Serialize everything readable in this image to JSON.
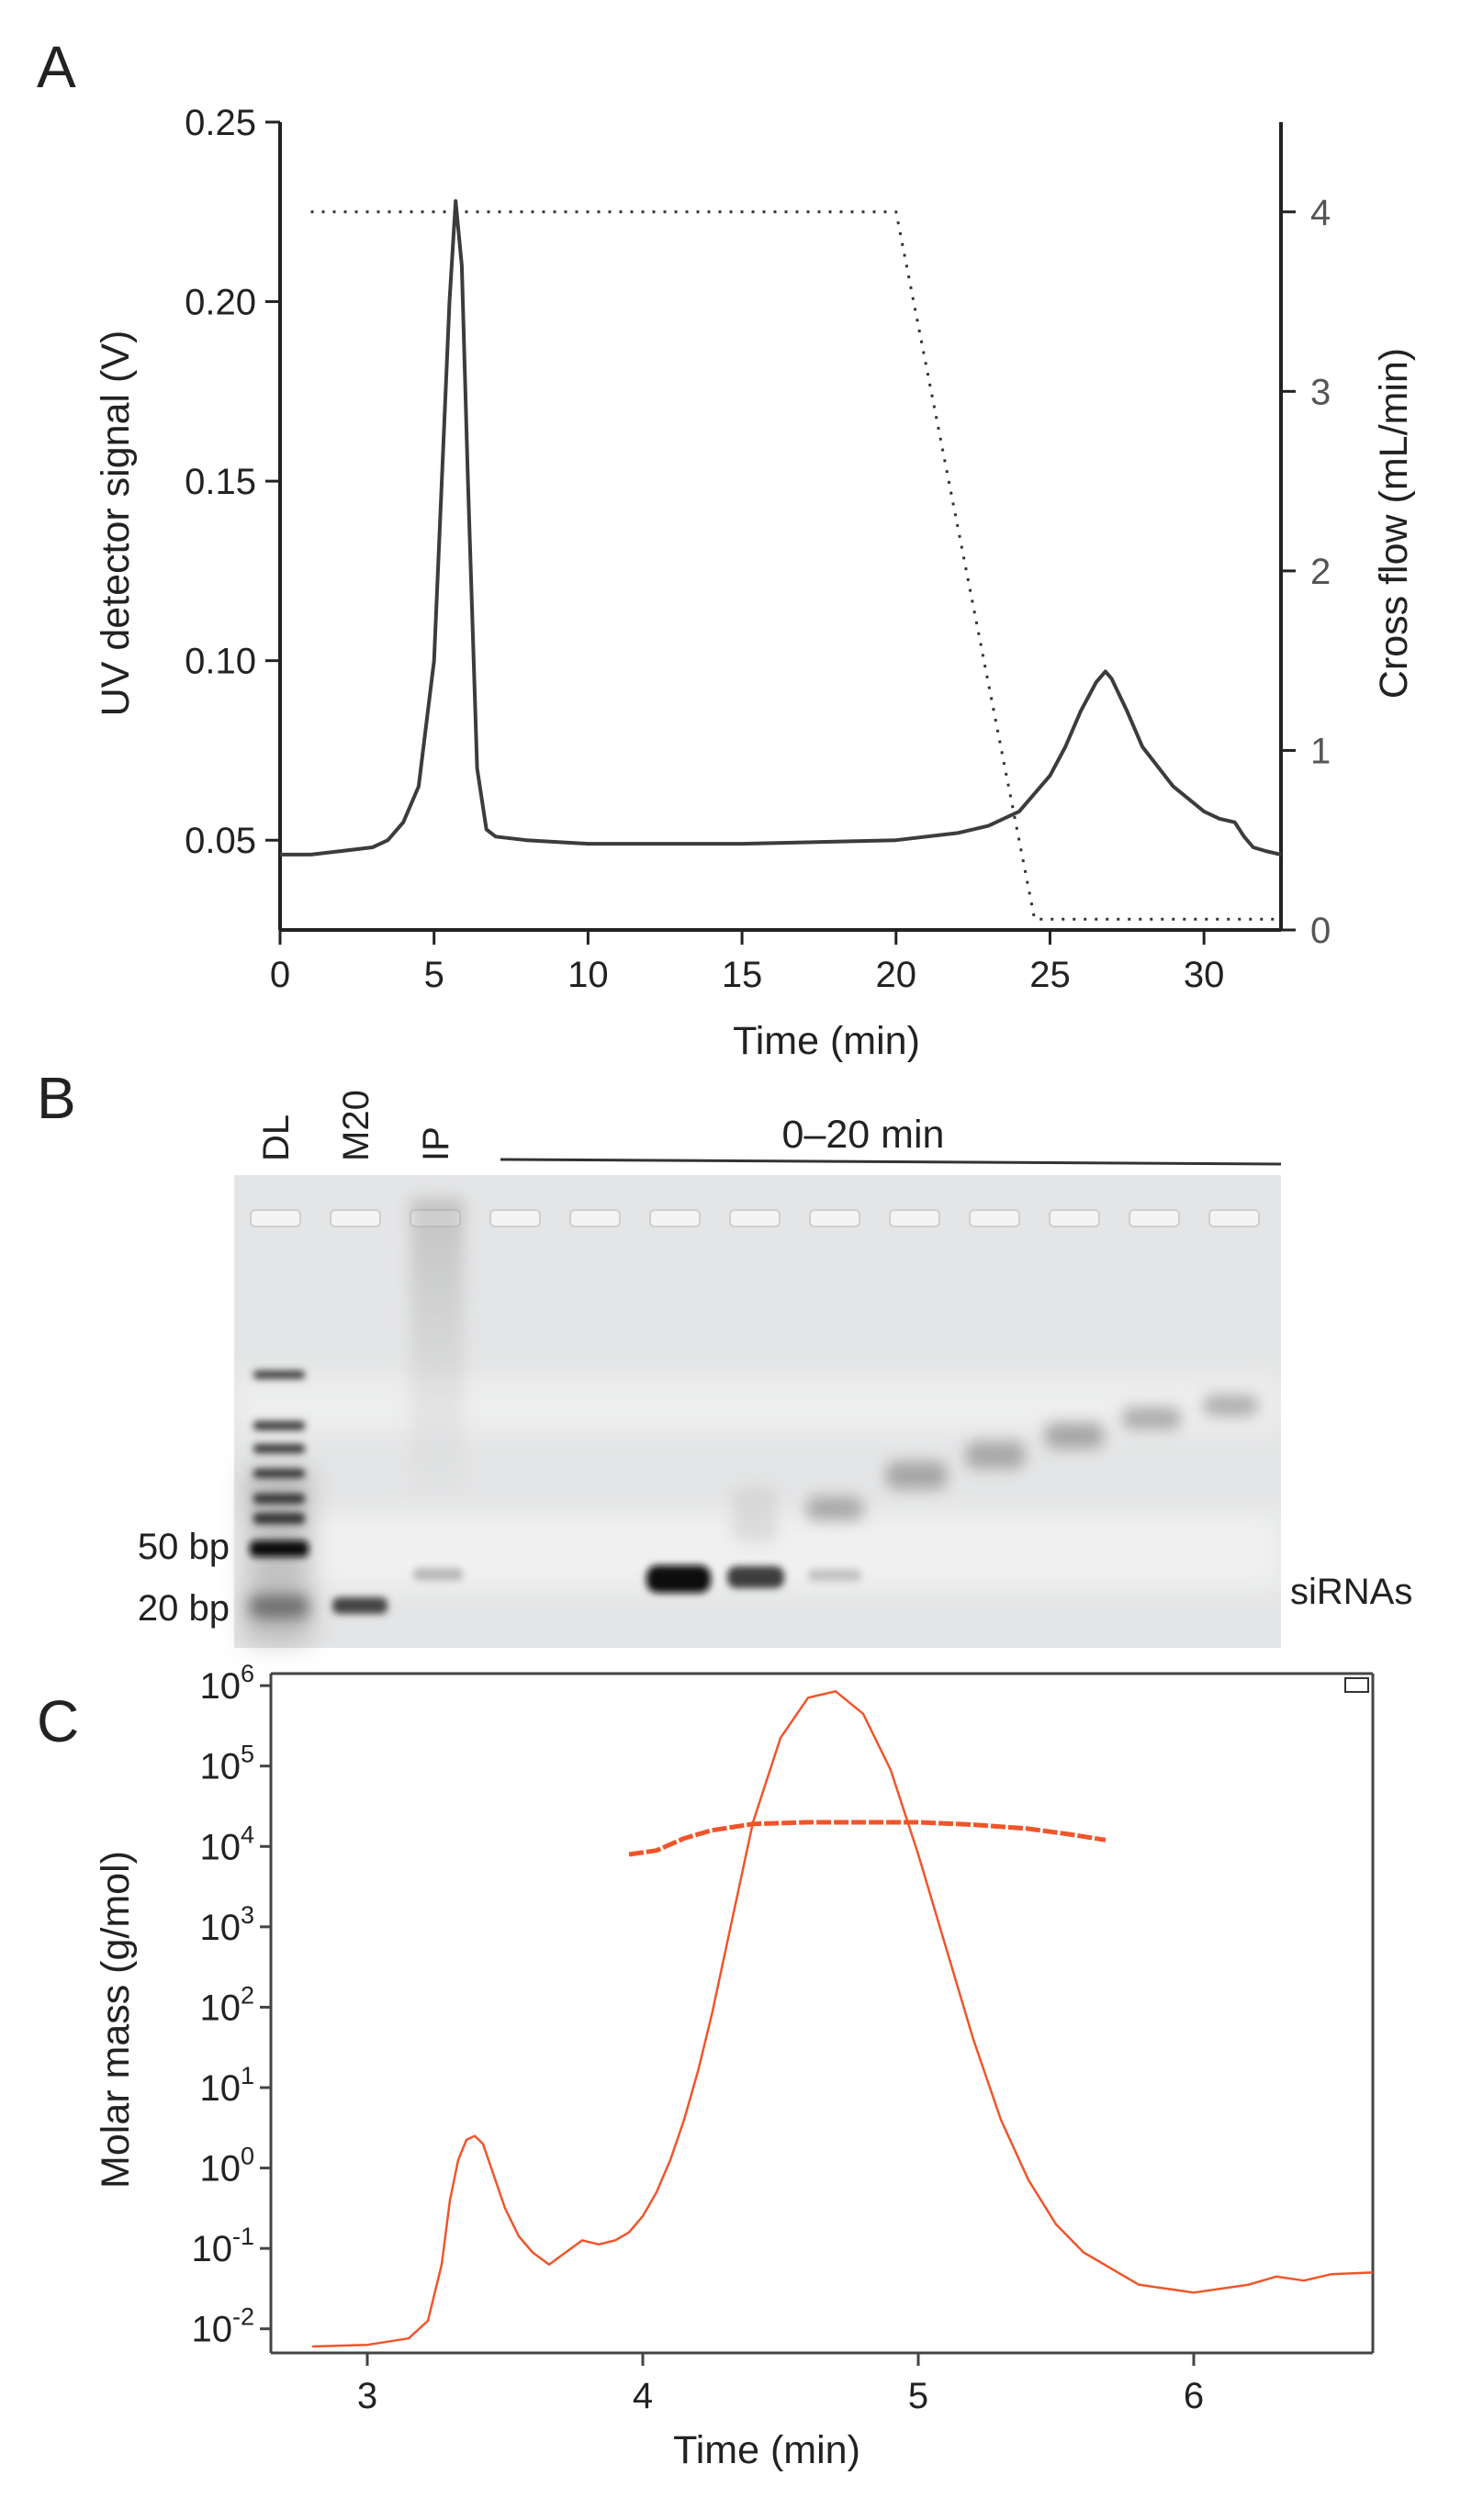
{
  "panels": {
    "a": "A",
    "b": "B",
    "c": "C"
  },
  "colors": {
    "trace_a": "#3c3c3c",
    "trace_c": "#f0552a",
    "axis": "#222222",
    "right_axis": "#555555",
    "gel_bg": "#e4e5e6"
  },
  "chart_data": [
    {
      "id": "A",
      "type": "line",
      "xlabel": "Time (min)",
      "ylabel": "UV detector signal (V)",
      "y2label": "Cross flow (mL/min)",
      "xlim": [
        0,
        32.5
      ],
      "ylim": [
        0.025,
        0.25
      ],
      "y2lim": [
        0,
        4.5
      ],
      "xticks": [
        0,
        5,
        10,
        15,
        20,
        25,
        30
      ],
      "yticks": [
        0.05,
        0.1,
        0.15,
        0.2,
        0.25
      ],
      "yticklabels": [
        "0.05",
        "0.10",
        "0.15",
        "0.20",
        "0.25"
      ],
      "y2ticks": [
        0,
        1,
        2,
        3,
        4
      ],
      "series": [
        {
          "name": "UV detector signal",
          "axis": "left",
          "style": "solid",
          "x": [
            0,
            1,
            2,
            3,
            3.5,
            4,
            4.5,
            5,
            5.3,
            5.5,
            5.7,
            5.9,
            6.1,
            6.4,
            6.7,
            7,
            8,
            10,
            15,
            20,
            22,
            23,
            24,
            25,
            25.5,
            26,
            26.5,
            26.8,
            27,
            27.5,
            28,
            29,
            30,
            30.5,
            31,
            31.3,
            31.6,
            32,
            32.5
          ],
          "values": [
            0.046,
            0.046,
            0.047,
            0.048,
            0.05,
            0.055,
            0.065,
            0.1,
            0.16,
            0.2,
            0.228,
            0.21,
            0.15,
            0.07,
            0.053,
            0.051,
            0.05,
            0.049,
            0.049,
            0.05,
            0.052,
            0.054,
            0.058,
            0.068,
            0.076,
            0.086,
            0.094,
            0.097,
            0.095,
            0.086,
            0.076,
            0.065,
            0.058,
            0.056,
            0.055,
            0.051,
            0.048,
            0.047,
            0.046
          ]
        },
        {
          "name": "Cross flow",
          "axis": "right",
          "style": "dotted",
          "x": [
            1,
            20,
            24.5,
            32.5
          ],
          "values": [
            4,
            4,
            0.06,
            0.06
          ]
        }
      ]
    },
    {
      "id": "C",
      "type": "line",
      "xlabel": "Time (min)",
      "ylabel": "Molar mass (g/mol)",
      "yscale": "log",
      "xlim": [
        2.65,
        6.65
      ],
      "ylim_log10": [
        -2.3,
        6.15
      ],
      "xticks": [
        3,
        4,
        5,
        6
      ],
      "yticks_base": "10",
      "yticks_exp": [
        "-2",
        "-1",
        "0",
        "1",
        "2",
        "3",
        "4",
        "5",
        "6"
      ],
      "series": [
        {
          "name": "Detector trace",
          "style": "solid",
          "x": [
            2.8,
            3.0,
            3.15,
            3.22,
            3.27,
            3.3,
            3.33,
            3.36,
            3.39,
            3.42,
            3.45,
            3.5,
            3.55,
            3.6,
            3.66,
            3.72,
            3.78,
            3.84,
            3.9,
            3.95,
            4.0,
            4.05,
            4.1,
            4.15,
            4.2,
            4.25,
            4.3,
            4.35,
            4.4,
            4.5,
            4.6,
            4.7,
            4.8,
            4.9,
            5.0,
            5.1,
            5.2,
            5.3,
            5.4,
            5.5,
            5.6,
            5.8,
            6.0,
            6.2,
            6.3,
            6.4,
            6.5,
            6.65
          ],
          "values_log10": [
            -2.22,
            -2.2,
            -2.12,
            -1.9,
            -1.2,
            -0.4,
            0.1,
            0.35,
            0.4,
            0.3,
            0.0,
            -0.5,
            -0.85,
            -1.05,
            -1.2,
            -1.05,
            -0.9,
            -0.95,
            -0.9,
            -0.8,
            -0.6,
            -0.3,
            0.1,
            0.6,
            1.2,
            1.9,
            2.7,
            3.5,
            4.3,
            5.35,
            5.85,
            5.93,
            5.65,
            4.95,
            3.9,
            2.75,
            1.6,
            0.6,
            -0.15,
            -0.7,
            -1.05,
            -1.45,
            -1.55,
            -1.45,
            -1.35,
            -1.4,
            -1.32,
            -1.3
          ]
        },
        {
          "name": "Molar mass",
          "style": "dashed",
          "x": [
            3.95,
            4.05,
            4.15,
            4.25,
            4.4,
            4.6,
            4.8,
            5.0,
            5.2,
            5.4,
            5.55,
            5.68
          ],
          "values_log10": [
            3.9,
            3.95,
            4.1,
            4.2,
            4.28,
            4.3,
            4.3,
            4.3,
            4.27,
            4.22,
            4.15,
            4.08
          ]
        }
      ]
    }
  ],
  "gel": {
    "lanes": [
      {
        "label": "DL"
      },
      {
        "label": "M20"
      },
      {
        "label": "IP"
      },
      {
        "label": ""
      },
      {
        "label": ""
      },
      {
        "label": ""
      },
      {
        "label": ""
      },
      {
        "label": ""
      },
      {
        "label": ""
      },
      {
        "label": ""
      },
      {
        "label": ""
      },
      {
        "label": ""
      },
      {
        "label": ""
      }
    ],
    "range_label": "0–20 min",
    "marker_labels": [
      "50 bp",
      "20 bp"
    ],
    "right_label": "siRNAs"
  }
}
